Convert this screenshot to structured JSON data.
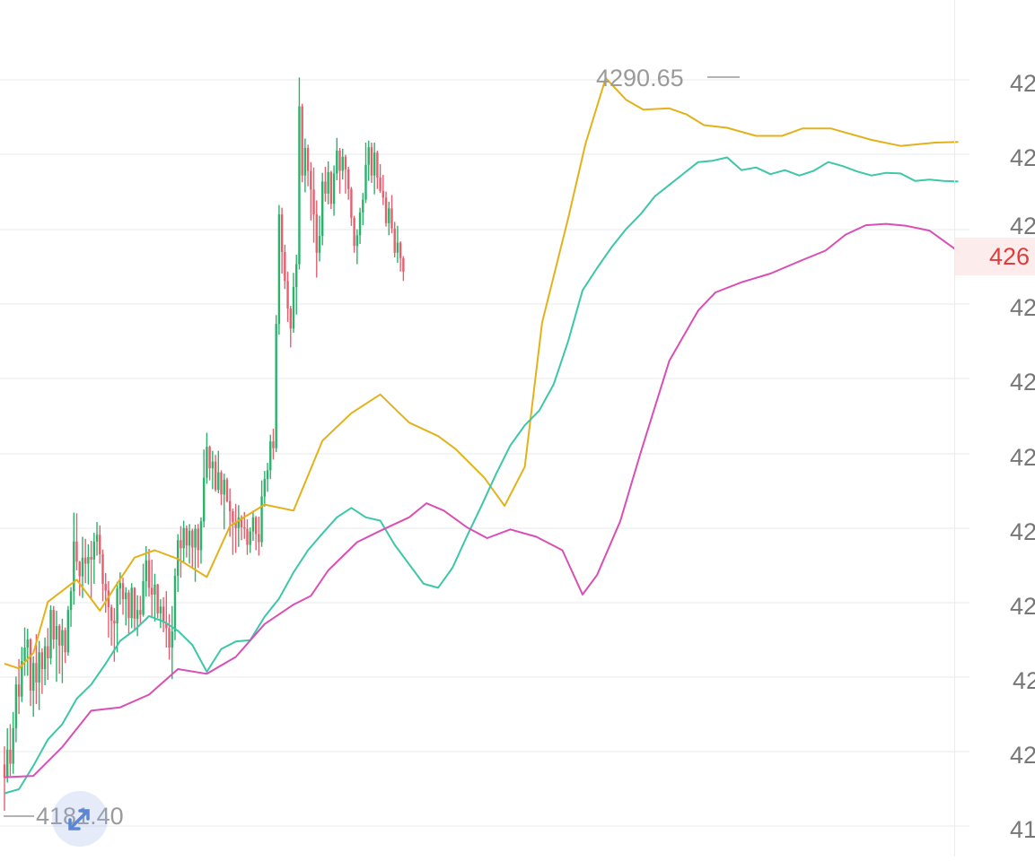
{
  "chart_data": {
    "type": "candlestick",
    "indicator": "Bollinger Bands",
    "max_label": "4290.65",
    "min_label": "4181.40",
    "last_price_label": "426",
    "y_tick_labels": [
      "42",
      "42",
      "42",
      "42",
      "42",
      "42",
      "42",
      "42",
      "42",
      "42",
      "41"
    ],
    "up_color": "#2bb26b",
    "down_color": "#e4606f",
    "upper_band_color": "#e3b21b",
    "middle_band_color": "#3cc7a8",
    "lower_band_color": "#d94fb5",
    "candles": [
      [
        4188.3,
        4191.0,
        4181.4,
        4186.3
      ],
      [
        4186.3,
        4193.7,
        4185.6,
        4190.5
      ],
      [
        4190.5,
        4194.3,
        4186.6,
        4188.4
      ],
      [
        4188.4,
        4196.1,
        4186.9,
        4193.7
      ],
      [
        4193.7,
        4201.4,
        4191.6,
        4200.2
      ],
      [
        4200.2,
        4204.0,
        4195.8,
        4198.4
      ],
      [
        4198.4,
        4205.8,
        4197.6,
        4203.7
      ],
      [
        4203.7,
        4208.7,
        4201.5,
        4205.7
      ],
      [
        4205.7,
        4208.5,
        4201.5,
        4206.9
      ],
      [
        4206.9,
        4207.1,
        4197.0,
        4199.3
      ],
      [
        4199.3,
        4204.4,
        4195.4,
        4203.4
      ],
      [
        4203.4,
        4207.7,
        4197.3,
        4200.5
      ],
      [
        4200.5,
        4206.7,
        4196.4,
        4205.0
      ],
      [
        4205.0,
        4205.6,
        4198.8,
        4202.5
      ],
      [
        4202.5,
        4207.2,
        4200.1,
        4205.9
      ],
      [
        4205.9,
        4208.6,
        4200.9,
        4204.1
      ],
      [
        4204.1,
        4212.0,
        4203.2,
        4211.3
      ],
      [
        4211.3,
        4211.9,
        4205.5,
        4206.9
      ],
      [
        4206.9,
        4211.2,
        4200.6,
        4208.9
      ],
      [
        4208.9,
        4209.2,
        4201.8,
        4206.0
      ],
      [
        4206.0,
        4210.0,
        4200.4,
        4208.3
      ],
      [
        4208.3,
        4208.7,
        4203.4,
        4205.0
      ],
      [
        4205.0,
        4211.9,
        4204.5,
        4211.3
      ],
      [
        4211.3,
        4214.7,
        4208.8,
        4214.1
      ],
      [
        4214.1,
        4225.8,
        4212.1,
        4221.5
      ],
      [
        4221.5,
        4225.7,
        4217.2,
        4218.5
      ],
      [
        4218.5,
        4218.6,
        4213.4,
        4216.3
      ],
      [
        4216.3,
        4222.2,
        4213.1,
        4219.1
      ],
      [
        4219.1,
        4221.9,
        4215.3,
        4218.2
      ],
      [
        4218.2,
        4221.1,
        4215.1,
        4219.2
      ],
      [
        4219.2,
        4221.6,
        4212.8,
        4218.8
      ],
      [
        4218.8,
        4222.8,
        4215.2,
        4221.5
      ],
      [
        4221.5,
        4224.4,
        4219.4,
        4222.5
      ],
      [
        4222.5,
        4223.9,
        4218.2,
        4219.6
      ],
      [
        4219.6,
        4220.3,
        4212.6,
        4215.2
      ],
      [
        4215.2,
        4216.8,
        4210.9,
        4214.2
      ],
      [
        4214.2,
        4215.6,
        4207.2,
        4211.7
      ],
      [
        4211.7,
        4212.1,
        4206.0,
        4209.7
      ],
      [
        4209.7,
        4211.6,
        4203.6,
        4209.3
      ],
      [
        4209.3,
        4215.5,
        4205.0,
        4214.5
      ],
      [
        4214.5,
        4216.9,
        4212.1,
        4215.3
      ],
      [
        4215.3,
        4216.1,
        4210.6,
        4212.9
      ],
      [
        4212.9,
        4214.7,
        4209.0,
        4213.9
      ],
      [
        4213.9,
        4214.3,
        4207.5,
        4210.1
      ],
      [
        4210.1,
        4215.3,
        4208.6,
        4214.6
      ],
      [
        4214.6,
        4214.7,
        4208.2,
        4210.0
      ],
      [
        4210.0,
        4213.5,
        4207.4,
        4211.3
      ],
      [
        4211.3,
        4213.4,
        4209.2,
        4210.6
      ],
      [
        4210.6,
        4218.2,
        4210.3,
        4215.6
      ],
      [
        4215.6,
        4220.8,
        4213.3,
        4218.7
      ],
      [
        4218.7,
        4220.4,
        4213.3,
        4214.6
      ],
      [
        4214.6,
        4218.8,
        4210.2,
        4213.6
      ],
      [
        4213.6,
        4216.7,
        4209.6,
        4215.1
      ],
      [
        4215.1,
        4215.2,
        4210.1,
        4210.8
      ],
      [
        4210.8,
        4212.9,
        4208.6,
        4211.8
      ],
      [
        4211.8,
        4213.2,
        4208.0,
        4209.4
      ],
      [
        4209.4,
        4214.1,
        4205.7,
        4208.6
      ],
      [
        4208.6,
        4210.7,
        4203.9,
        4205.7
      ],
      [
        4205.7,
        4211.9,
        4201.0,
        4208.1
      ],
      [
        4208.1,
        4217.5,
        4206.8,
        4216.4
      ],
      [
        4216.4,
        4222.6,
        4214.0,
        4221.7
      ],
      [
        4221.7,
        4223.8,
        4216.1,
        4220.5
      ],
      [
        4220.5,
        4224.6,
        4218.3,
        4223.5
      ],
      [
        4223.5,
        4223.9,
        4219.1,
        4220.9
      ],
      [
        4220.9,
        4224.1,
        4218.2,
        4223.1
      ],
      [
        4223.1,
        4223.4,
        4217.5,
        4220.6
      ],
      [
        4220.6,
        4224.0,
        4215.5,
        4223.4
      ],
      [
        4223.4,
        4224.1,
        4217.6,
        4220.2
      ],
      [
        4220.2,
        4225.1,
        4218.2,
        4224.5
      ],
      [
        4224.5,
        4235.2,
        4223.6,
        4231.0
      ],
      [
        4231.0,
        4237.7,
        4230.1,
        4235.6
      ],
      [
        4235.6,
        4235.8,
        4230.6,
        4232.4
      ],
      [
        4232.4,
        4235.0,
        4229.3,
        4233.4
      ],
      [
        4233.4,
        4234.4,
        4228.9,
        4229.2
      ],
      [
        4229.2,
        4235.0,
        4228.7,
        4231.8
      ],
      [
        4231.8,
        4232.1,
        4226.9,
        4228.5
      ],
      [
        4228.5,
        4231.6,
        4223.3,
        4230.7
      ],
      [
        4230.7,
        4231.0,
        4227.3,
        4227.5
      ],
      [
        4227.5,
        4229.4,
        4222.2,
        4226.0
      ],
      [
        4226.0,
        4226.4,
        4219.5,
        4224.4
      ],
      [
        4224.4,
        4227.1,
        4219.8,
        4223.5
      ],
      [
        4223.5,
        4226.9,
        4220.7,
        4225.1
      ],
      [
        4225.1,
        4225.4,
        4221.7,
        4223.6
      ],
      [
        4223.6,
        4225.9,
        4221.9,
        4223.4
      ],
      [
        4223.4,
        4224.8,
        4219.5,
        4221.0
      ],
      [
        4221.0,
        4223.6,
        4219.8,
        4223.0
      ],
      [
        4223.0,
        4226.1,
        4221.6,
        4225.1
      ],
      [
        4225.1,
        4225.3,
        4220.2,
        4222.6
      ],
      [
        4222.6,
        4225.2,
        4219.4,
        4221.4
      ],
      [
        4221.4,
        4230.6,
        4220.7,
        4228.2
      ],
      [
        4228.2,
        4232.0,
        4226.7,
        4230.8
      ],
      [
        4230.8,
        4233.2,
        4228.9,
        4232.1
      ],
      [
        4232.1,
        4237.4,
        4230.8,
        4236.4
      ],
      [
        4236.4,
        4238.3,
        4233.7,
        4235.4
      ],
      [
        4235.4,
        4255.2,
        4234.8,
        4253.9
      ],
      [
        4253.9,
        4271.6,
        4252.3,
        4270.2
      ],
      [
        4270.2,
        4271.2,
        4261.4,
        4264.6
      ],
      [
        4264.6,
        4265.7,
        4259.1,
        4260.3
      ],
      [
        4260.3,
        4261.7,
        4254.2,
        4256.2
      ],
      [
        4256.2,
        4256.6,
        4250.4,
        4253.2
      ],
      [
        4253.2,
        4261.5,
        4252.6,
        4259.4
      ],
      [
        4259.4,
        4264.2,
        4255.3,
        4262.8
      ],
      [
        4262.8,
        4290.6,
        4262.0,
        4286.3
      ],
      [
        4286.3,
        4286.7,
        4275.0,
        4276.0
      ],
      [
        4276.0,
        4281.5,
        4273.5,
        4280.1
      ],
      [
        4280.1,
        4280.6,
        4274.4,
        4276.7
      ],
      [
        4276.7,
        4278.0,
        4269.3,
        4273.9
      ],
      [
        4273.9,
        4277.2,
        4266.0,
        4270.2
      ],
      [
        4270.2,
        4272.3,
        4260.8,
        4264.5
      ],
      [
        4264.5,
        4270.0,
        4263.2,
        4267.0
      ],
      [
        4267.0,
        4276.4,
        4265.6,
        4275.1
      ],
      [
        4275.1,
        4277.3,
        4272.1,
        4273.3
      ],
      [
        4273.3,
        4278.1,
        4271.7,
        4276.5
      ],
      [
        4276.5,
        4276.7,
        4271.0,
        4271.8
      ],
      [
        4271.8,
        4277.5,
        4270.0,
        4276.3
      ],
      [
        4276.3,
        4281.6,
        4275.3,
        4279.7
      ],
      [
        4279.7,
        4280.1,
        4273.3,
        4276.7
      ],
      [
        4276.7,
        4280.0,
        4275.4,
        4278.8
      ],
      [
        4278.8,
        4279.1,
        4273.3,
        4276.9
      ],
      [
        4276.9,
        4277.3,
        4272.4,
        4274.0
      ],
      [
        4274.0,
        4274.3,
        4268.5,
        4269.7
      ],
      [
        4269.7,
        4270.0,
        4264.5,
        4265.5
      ],
      [
        4265.5,
        4268.0,
        4262.8,
        4267.1
      ],
      [
        4267.1,
        4271.2,
        4265.8,
        4270.5
      ],
      [
        4270.5,
        4273.4,
        4268.6,
        4272.4
      ],
      [
        4272.4,
        4280.9,
        4271.9,
        4277.6
      ],
      [
        4277.6,
        4281.2,
        4275.2,
        4280.2
      ],
      [
        4280.2,
        4280.9,
        4274.9,
        4276.0
      ],
      [
        4276.0,
        4280.9,
        4273.2,
        4279.4
      ],
      [
        4279.4,
        4279.7,
        4274.0,
        4275.7
      ],
      [
        4275.7,
        4277.7,
        4273.4,
        4273.7
      ],
      [
        4273.7,
        4276.1,
        4271.6,
        4272.7
      ],
      [
        4272.7,
        4273.6,
        4268.4,
        4268.9
      ],
      [
        4268.9,
        4272.1,
        4267.1,
        4271.1
      ],
      [
        4271.1,
        4273.1,
        4267.4,
        4268.1
      ],
      [
        4268.1,
        4269.1,
        4263.8,
        4264.5
      ],
      [
        4264.5,
        4268.5,
        4263.0,
        4266.0
      ],
      [
        4266.0,
        4266.2,
        4261.7,
        4263.7
      ],
      [
        4263.7,
        4264.0,
        4260.3,
        4261.7
      ]
    ],
    "upper_band": [
      [
        0,
        4203.3
      ],
      [
        5,
        4202.6
      ],
      [
        10,
        4204.9
      ],
      [
        15,
        4212.5
      ],
      [
        25,
        4215.8
      ],
      [
        33,
        4211.2
      ],
      [
        38,
        4214.6
      ],
      [
        45,
        4219.1
      ],
      [
        52,
        4220.2
      ],
      [
        60,
        4218.9
      ],
      [
        70,
        4216.2
      ],
      [
        78,
        4223.8
      ],
      [
        90,
        4227.0
      ],
      [
        100,
        4226.1
      ],
      [
        110,
        4236.5
      ],
      [
        120,
        4240.6
      ],
      [
        130,
        4243.4
      ],
      [
        140,
        4239.2
      ],
      [
        150,
        4237.2
      ],
      [
        156,
        4235.3
      ],
      [
        166,
        4231.0
      ],
      [
        173,
        4226.8
      ],
      [
        180,
        4232.6
      ],
      [
        186,
        4254.1
      ],
      [
        195,
        4269.6
      ],
      [
        201,
        4280.7
      ],
      [
        208,
        4290.5
      ],
      [
        215,
        4287.3
      ],
      [
        221,
        4285.8
      ],
      [
        230,
        4286.0
      ],
      [
        236,
        4285.1
      ],
      [
        242,
        4283.5
      ],
      [
        250,
        4283.1
      ],
      [
        260,
        4281.9
      ],
      [
        269,
        4281.9
      ],
      [
        276,
        4283.0
      ],
      [
        286,
        4283.0
      ],
      [
        300,
        4281.3
      ],
      [
        310,
        4280.4
      ],
      [
        322,
        4280.9
      ],
      [
        330,
        4281.0
      ]
    ],
    "middle_band": [
      [
        0,
        4184.0
      ],
      [
        5,
        4184.6
      ],
      [
        10,
        4188.1
      ],
      [
        15,
        4192.0
      ],
      [
        20,
        4194.3
      ],
      [
        25,
        4198.1
      ],
      [
        30,
        4200.2
      ],
      [
        35,
        4203.3
      ],
      [
        40,
        4206.7
      ],
      [
        45,
        4208.3
      ],
      [
        50,
        4210.4
      ],
      [
        55,
        4209.6
      ],
      [
        60,
        4208.2
      ],
      [
        65,
        4206.1
      ],
      [
        70,
        4202.1
      ],
      [
        75,
        4205.5
      ],
      [
        80,
        4206.6
      ],
      [
        85,
        4206.8
      ],
      [
        90,
        4210.3
      ],
      [
        95,
        4213.0
      ],
      [
        100,
        4216.9
      ],
      [
        105,
        4220.2
      ],
      [
        110,
        4222.7
      ],
      [
        115,
        4225.1
      ],
      [
        120,
        4226.5
      ],
      [
        125,
        4225.1
      ],
      [
        130,
        4224.6
      ],
      [
        135,
        4221.0
      ],
      [
        140,
        4218.1
      ],
      [
        145,
        4215.2
      ],
      [
        150,
        4214.6
      ],
      [
        155,
        4217.6
      ],
      [
        160,
        4222.3
      ],
      [
        165,
        4226.8
      ],
      [
        170,
        4231.5
      ],
      [
        175,
        4235.8
      ],
      [
        180,
        4238.8
      ],
      [
        185,
        4241.0
      ],
      [
        190,
        4244.9
      ],
      [
        195,
        4251.3
      ],
      [
        200,
        4258.9
      ],
      [
        205,
        4262.2
      ],
      [
        210,
        4265.3
      ],
      [
        215,
        4268.0
      ],
      [
        220,
        4270.2
      ],
      [
        225,
        4272.9
      ],
      [
        230,
        4274.6
      ],
      [
        235,
        4276.3
      ],
      [
        240,
        4278.0
      ],
      [
        245,
        4278.2
      ],
      [
        250,
        4278.7
      ],
      [
        255,
        4276.8
      ],
      [
        260,
        4277.2
      ],
      [
        265,
        4276.2
      ],
      [
        270,
        4276.8
      ],
      [
        275,
        4276.0
      ],
      [
        280,
        4276.7
      ],
      [
        285,
        4278.0
      ],
      [
        290,
        4277.4
      ],
      [
        295,
        4276.6
      ],
      [
        300,
        4276.0
      ],
      [
        305,
        4276.4
      ],
      [
        310,
        4276.3
      ],
      [
        315,
        4275.2
      ],
      [
        320,
        4275.4
      ],
      [
        325,
        4275.2
      ],
      [
        330,
        4275.1
      ]
    ],
    "lower_band": [
      [
        0,
        4186.4
      ],
      [
        10,
        4186.6
      ],
      [
        20,
        4190.9
      ],
      [
        30,
        4196.3
      ],
      [
        40,
        4196.8
      ],
      [
        50,
        4198.7
      ],
      [
        60,
        4202.5
      ],
      [
        70,
        4201.8
      ],
      [
        80,
        4204.3
      ],
      [
        90,
        4209.2
      ],
      [
        100,
        4212.1
      ],
      [
        106,
        4213.4
      ],
      [
        112,
        4217.2
      ],
      [
        122,
        4221.4
      ],
      [
        130,
        4223.1
      ],
      [
        140,
        4225.1
      ],
      [
        146,
        4227.2
      ],
      [
        152,
        4226.1
      ],
      [
        160,
        4223.6
      ],
      [
        167,
        4222.0
      ],
      [
        175,
        4223.3
      ],
      [
        184,
        4222.2
      ],
      [
        193,
        4220.2
      ],
      [
        200,
        4213.6
      ],
      [
        205,
        4216.5
      ],
      [
        213,
        4224.5
      ],
      [
        220,
        4234.6
      ],
      [
        230,
        4248.4
      ],
      [
        240,
        4255.9
      ],
      [
        246,
        4258.6
      ],
      [
        255,
        4260.1
      ],
      [
        265,
        4261.4
      ],
      [
        276,
        4263.4
      ],
      [
        284,
        4264.8
      ],
      [
        291,
        4267.2
      ],
      [
        298,
        4268.6
      ],
      [
        305,
        4268.8
      ],
      [
        312,
        4268.5
      ],
      [
        320,
        4267.8
      ],
      [
        330,
        4264.7
      ]
    ]
  }
}
